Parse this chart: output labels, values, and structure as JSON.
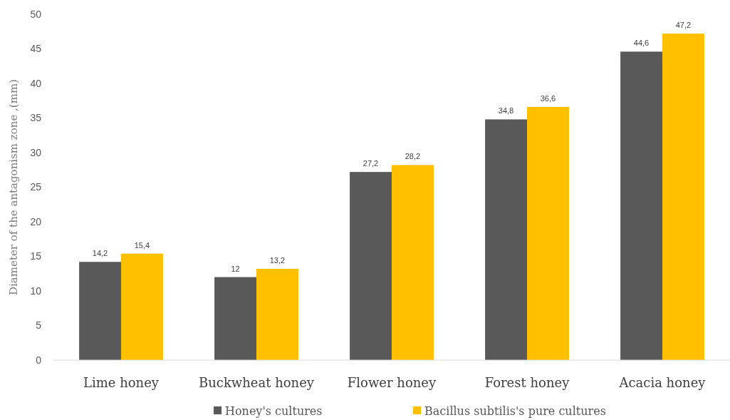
{
  "chart_data": {
    "type": "bar",
    "ylabel": "Diameter of the antagonism zone ,(mm)",
    "categories": [
      "Lime honey",
      "Buckwheat honey",
      "Flower honey",
      "Forest honey",
      "Acacia honey"
    ],
    "series": [
      {
        "name": "Honey's cultures",
        "color": "#595959",
        "values": [
          14.2,
          12,
          27.2,
          34.8,
          44.6
        ],
        "value_labels": [
          "14,2",
          "12",
          "27,2",
          "34,8",
          "44,6"
        ]
      },
      {
        "name": "Bacillus subtilis's pure cultures",
        "color": "#ffc000",
        "values": [
          15.4,
          13.2,
          28.2,
          36.6,
          47.2
        ],
        "value_labels": [
          "15,4",
          "13,2",
          "28,2",
          "36,6",
          "47,2"
        ]
      }
    ],
    "ylim": [
      0,
      50
    ],
    "yticks": [
      0,
      5,
      10,
      15,
      20,
      25,
      30,
      35,
      40,
      45,
      50
    ],
    "grid": false,
    "legend": "bottom"
  }
}
